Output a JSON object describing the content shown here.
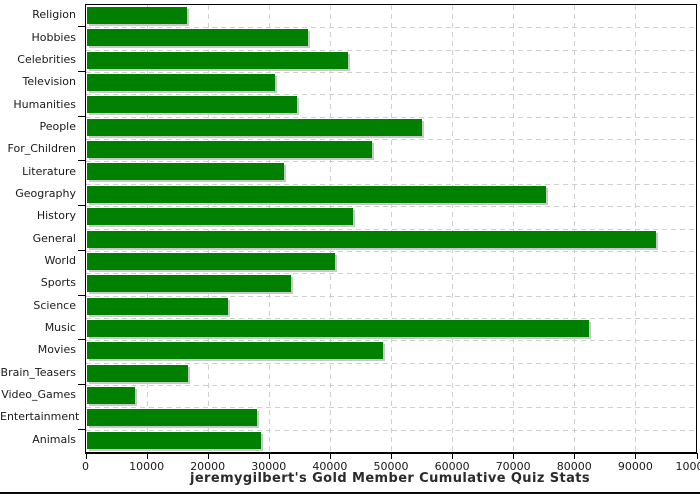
{
  "chart_data": {
    "type": "bar",
    "orientation": "horizontal",
    "title": "jeremygilbert's Gold Member Cumulative Quiz Stats",
    "categories": [
      "Religion",
      "Hobbies",
      "Celebrities",
      "Television",
      "Humanities",
      "People",
      "For_Children",
      "Literature",
      "Geography",
      "History",
      "General",
      "World",
      "Sports",
      "Science",
      "Music",
      "Movies",
      "Brain_Teasers",
      "Video_Games",
      "Entertainment",
      "Animals"
    ],
    "values": [
      16400,
      36300,
      42800,
      30800,
      34400,
      54900,
      46700,
      32300,
      75200,
      43600,
      93300,
      40600,
      33400,
      23100,
      82300,
      48500,
      16600,
      7900,
      27900,
      28500
    ],
    "xlabel": "",
    "ylabel": "",
    "xlim": [
      0,
      100000
    ],
    "x_ticks": [
      0,
      10000,
      20000,
      30000,
      40000,
      50000,
      60000,
      70000,
      80000,
      90000,
      100000
    ],
    "x_tick_labels": [
      "0",
      "10000",
      "20000",
      "30000",
      "40000",
      "50000",
      "60000",
      "70000",
      "80000",
      "90000",
      "100000"
    ],
    "grid": "dashed",
    "legend": "none",
    "bar_color": "#008000",
    "bar_shadow_color": "#c8c8c8",
    "gridline_color": "#cfcfcf",
    "axis_color": "#000000",
    "text_color": "#1a1a1a"
  }
}
